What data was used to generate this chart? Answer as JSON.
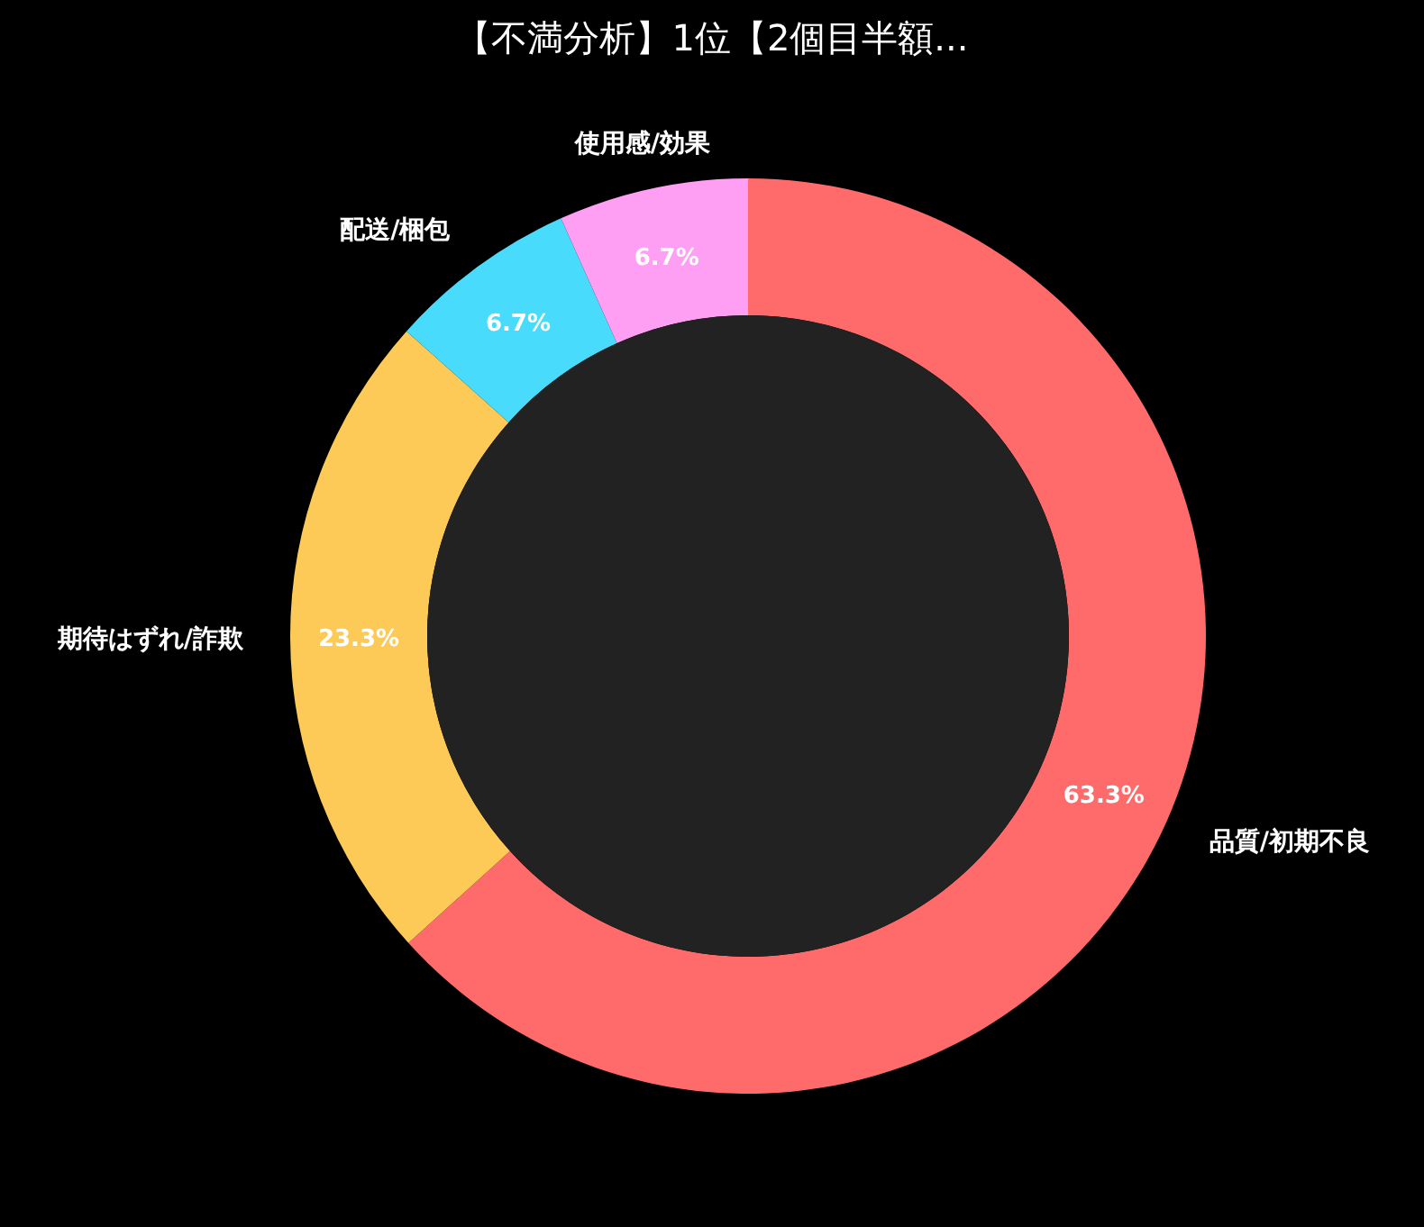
{
  "chart_data": {
    "type": "donut",
    "title": "【不満分析】1位【2個目半額...",
    "categories": [
      "品質/初期不良",
      "期待はずれ/詐欺",
      "配送/梱包",
      "使用感/効果"
    ],
    "values": [
      63.3,
      23.3,
      6.7,
      6.7
    ],
    "value_labels": [
      "63.3%",
      "23.3%",
      "6.7%",
      "6.7%"
    ],
    "colors": [
      "#ff6b6b",
      "#feca57",
      "#48dbfb",
      "#ff9ff3"
    ]
  }
}
